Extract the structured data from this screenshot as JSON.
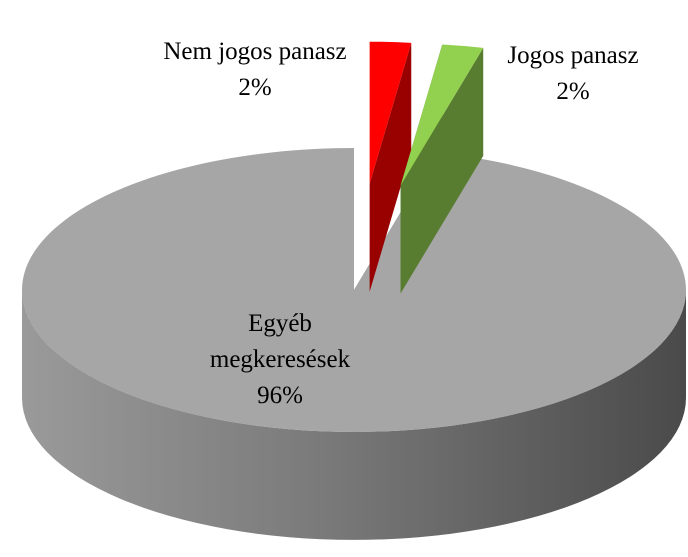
{
  "chart_data": {
    "type": "pie",
    "categories": [
      "Nem jogos panasz",
      "Jogos panasz",
      "Egyéb megkeresések"
    ],
    "values": [
      2,
      2,
      96
    ],
    "value_labels": [
      "2%",
      "2%",
      "96%"
    ],
    "colors": [
      "#ff0000",
      "#92d050",
      "#a6a6a6"
    ],
    "exploded": [
      true,
      true,
      false
    ]
  }
}
